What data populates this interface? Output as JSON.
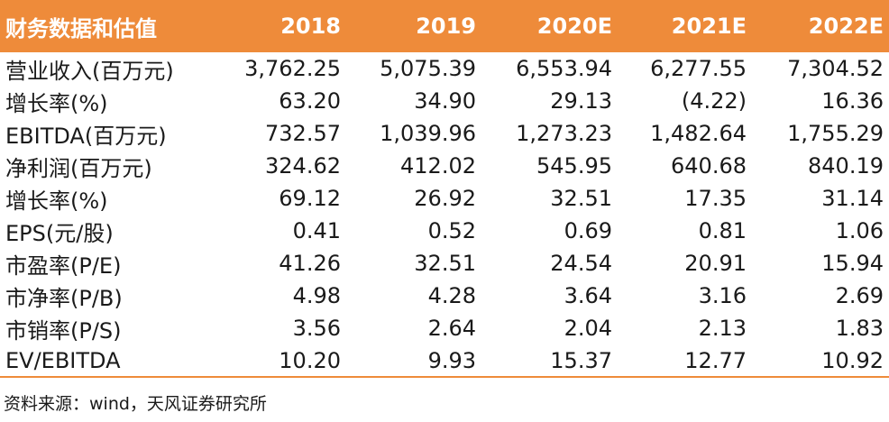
{
  "table": {
    "headers": [
      "财务数据和估值",
      "2018",
      "2019",
      "2020E",
      "2021E",
      "2022E"
    ],
    "rows": [
      {
        "label": "营业收入(百万元)",
        "values": [
          "3,762.25",
          "5,075.39",
          "6,553.94",
          "6,277.55",
          "7,304.52"
        ]
      },
      {
        "label": "增长率(%)",
        "values": [
          "63.20",
          "34.90",
          "29.13",
          "(4.22)",
          "16.36"
        ]
      },
      {
        "label": "EBITDA(百万元)",
        "values": [
          "732.57",
          "1,039.96",
          "1,273.23",
          "1,482.64",
          "1,755.29"
        ]
      },
      {
        "label": "净利润(百万元)",
        "values": [
          "324.62",
          "412.02",
          "545.95",
          "640.68",
          "840.19"
        ]
      },
      {
        "label": "增长率(%)",
        "values": [
          "69.12",
          "26.92",
          "32.51",
          "17.35",
          "31.14"
        ]
      },
      {
        "label": "EPS(元/股)",
        "values": [
          "0.41",
          "0.52",
          "0.69",
          "0.81",
          "1.06"
        ]
      },
      {
        "label": "市盈率(P/E)",
        "values": [
          "41.26",
          "32.51",
          "24.54",
          "20.91",
          "15.94"
        ]
      },
      {
        "label": "市净率(P/B)",
        "values": [
          "4.98",
          "4.28",
          "3.64",
          "3.16",
          "2.69"
        ]
      },
      {
        "label": "市销率(P/S)",
        "values": [
          "3.56",
          "2.64",
          "2.04",
          "2.13",
          "1.83"
        ]
      },
      {
        "label": "EV/EBITDA",
        "values": [
          "10.20",
          "9.93",
          "15.37",
          "12.77",
          "10.92"
        ]
      }
    ]
  },
  "source": "资料来源：wind，天风证券研究所",
  "colors": {
    "header_bg": "#ee8b3a",
    "header_text": "#ffffff"
  }
}
